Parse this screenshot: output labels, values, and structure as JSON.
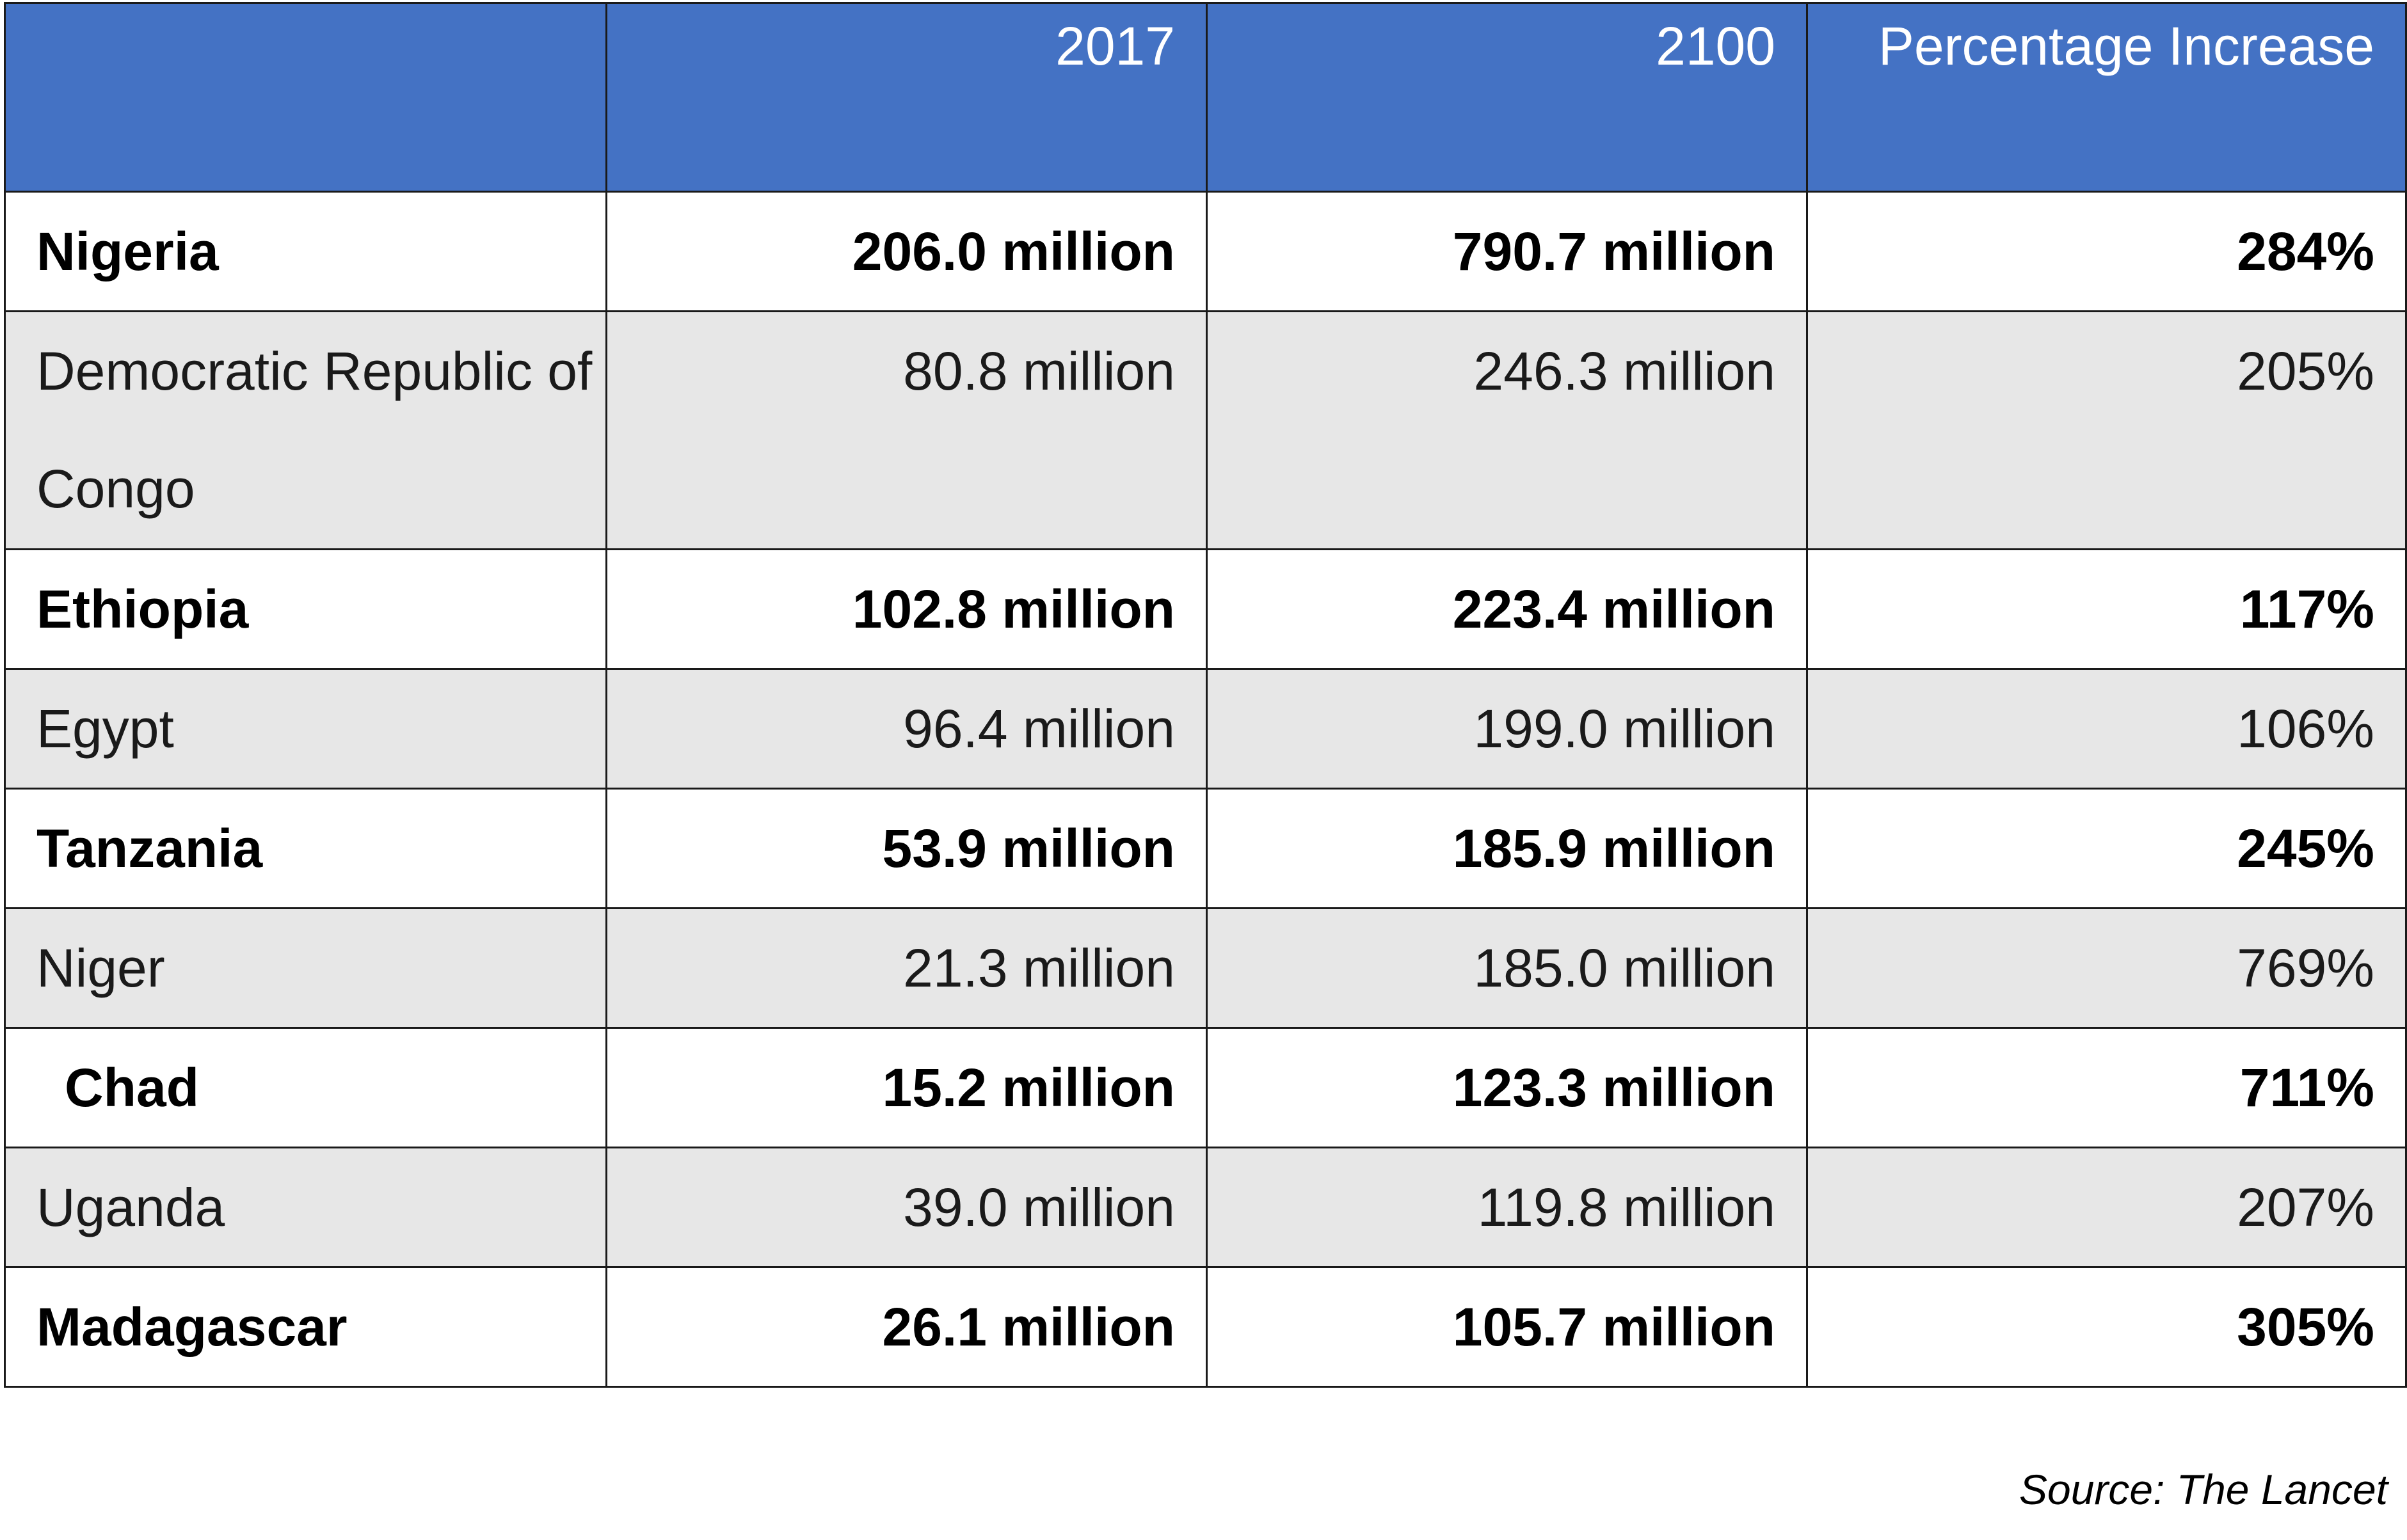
{
  "chart_data": {
    "type": "table",
    "columns": [
      "",
      "2017",
      "2100",
      "Percentage Increase"
    ],
    "rows": [
      {
        "country": "Nigeria",
        "y2017": "206.0 million",
        "y2100": "790.7 million",
        "increase": "284%",
        "bold": true,
        "shaded": false
      },
      {
        "country": "Democratic Republic of Congo",
        "y2017": "80.8 million",
        "y2100": "246.3 million",
        "increase": "205%",
        "bold": false,
        "shaded": true
      },
      {
        "country": "Ethiopia",
        "y2017": "102.8 million",
        "y2100": "223.4 million",
        "increase": "117%",
        "bold": true,
        "shaded": false
      },
      {
        "country": "Egypt",
        "y2017": "96.4 million",
        "y2100": "199.0 million",
        "increase": "106%",
        "bold": false,
        "shaded": true
      },
      {
        "country": "Tanzania",
        "y2017": "53.9 million",
        "y2100": "185.9 million",
        "increase": "245%",
        "bold": true,
        "shaded": false
      },
      {
        "country": "Niger",
        "y2017": "21.3 million",
        "y2100": "185.0 million",
        "increase": "769%",
        "bold": false,
        "shaded": true
      },
      {
        "country": "Chad",
        "y2017": "15.2 million",
        "y2100": "123.3 million",
        "increase": "711%",
        "bold": true,
        "shaded": false
      },
      {
        "country": "Uganda",
        "y2017": "39.0 million",
        "y2100": "119.8 million",
        "increase": "207%",
        "bold": false,
        "shaded": true
      },
      {
        "country": "Madagascar",
        "y2017": "26.1 million",
        "y2100": "105.7 million",
        "increase": "305%",
        "bold": true,
        "shaded": false
      }
    ],
    "source": "Source: The Lancet"
  },
  "colors": {
    "header_bg": "#4472c4",
    "header_text": "#ffffff",
    "shaded_row": "#e7e7e7",
    "border": "#1a1a1a"
  }
}
